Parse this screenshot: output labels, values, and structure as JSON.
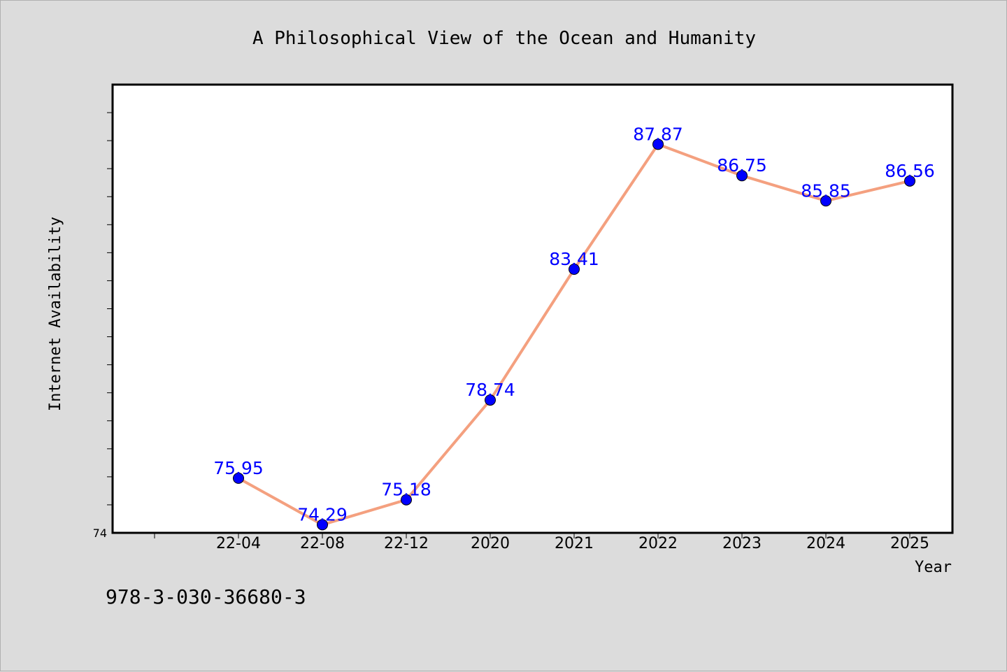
{
  "chart_data": {
    "type": "line",
    "title": "A Philosophical View of the Ocean and Humanity",
    "xlabel": "Year",
    "ylabel": "Internet Availability",
    "categories": [
      "22-04",
      "22-08",
      "22-12",
      "2020",
      "2021",
      "2022",
      "2023",
      "2024",
      "2025"
    ],
    "series": [
      {
        "values": [
          75.95,
          74.29,
          75.18,
          78.74,
          83.41,
          87.87,
          86.75,
          85.85,
          86.56
        ],
        "data_labels": [
          "75.95",
          "74.29",
          "75.18",
          "78.74",
          "83.41",
          "87.87",
          "86.75",
          "85.85",
          "86.56"
        ]
      }
    ],
    "ylim": [
      74,
      90
    ],
    "ytick_labels": [
      "74"
    ],
    "grid": false,
    "colors": {
      "line": "#f4a07f",
      "marker": "#0000ff",
      "data_label": "#0000ff",
      "background": "#dcdcdc",
      "plot_background": "#ffffff"
    }
  },
  "footer": {
    "isbn": "978-3-030-36680-3"
  }
}
